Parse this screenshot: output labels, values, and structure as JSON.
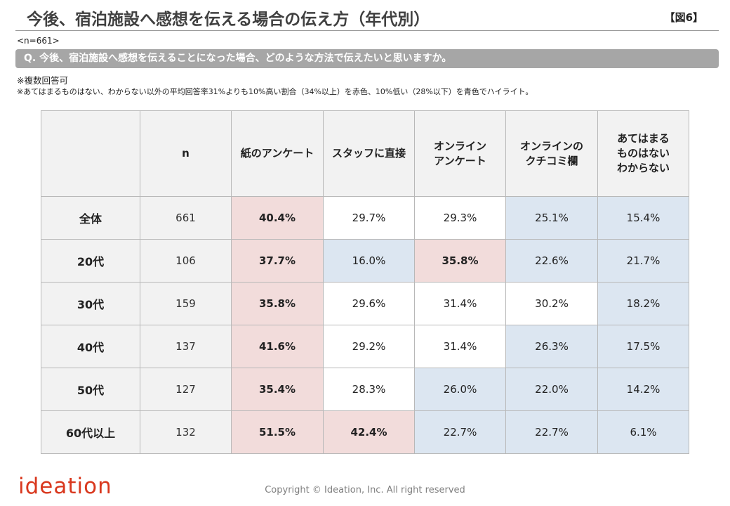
{
  "header": {
    "title": "今後、宿泊施設へ感想を伝える場合の伝え方（年代別）",
    "figure_label": "【図6】",
    "sample": "<n=661>"
  },
  "question": "Q. 今後、宿泊施設へ感想を伝えることになった場合、どのような方法で伝えたいと思いますか。",
  "notes": [
    "※複数回答可",
    "※あてはまるものはない、わからない以外の平均回答率31%よりも10%高い割合（34%以上）を赤色、10%低い（28%以下）を青色でハイライト。"
  ],
  "table": {
    "columns": [
      "n",
      "紙のアンケート",
      "スタッフに直接",
      "オンライン\nアンケート",
      "オンラインの\nクチコミ欄",
      "あてはまる\nものはない\nわからない"
    ],
    "rows": [
      {
        "label": "全体",
        "n": "661",
        "values": [
          "40.4%",
          "29.7%",
          "29.3%",
          "25.1%",
          "15.4%"
        ],
        "highlight": [
          "red",
          "",
          "",
          "blue",
          "blue"
        ]
      },
      {
        "label": "20代",
        "n": "106",
        "values": [
          "37.7%",
          "16.0%",
          "35.8%",
          "22.6%",
          "21.7%"
        ],
        "highlight": [
          "red",
          "blue",
          "red",
          "blue",
          "blue"
        ]
      },
      {
        "label": "30代",
        "n": "159",
        "values": [
          "35.8%",
          "29.6%",
          "31.4%",
          "30.2%",
          "18.2%"
        ],
        "highlight": [
          "red",
          "",
          "",
          "",
          "blue"
        ]
      },
      {
        "label": "40代",
        "n": "137",
        "values": [
          "41.6%",
          "29.2%",
          "31.4%",
          "26.3%",
          "17.5%"
        ],
        "highlight": [
          "red",
          "",
          "",
          "blue",
          "blue"
        ]
      },
      {
        "label": "50代",
        "n": "127",
        "values": [
          "35.4%",
          "28.3%",
          "26.0%",
          "22.0%",
          "14.2%"
        ],
        "highlight": [
          "red",
          "",
          "blue",
          "blue",
          "blue"
        ]
      },
      {
        "label": "60代以上",
        "n": "132",
        "values": [
          "51.5%",
          "42.4%",
          "22.7%",
          "22.7%",
          "6.1%"
        ],
        "highlight": [
          "red",
          "red",
          "blue",
          "blue",
          "blue"
        ]
      }
    ]
  },
  "colors": {
    "highlight_red": "#f2dcdb",
    "highlight_blue": "#dce6f1",
    "header_bg": "#f2f2f2",
    "brand": "#d9381e"
  },
  "footer": {
    "logo": "ideation",
    "copyright": "Copyright © Ideation, Inc. All right reserved"
  }
}
